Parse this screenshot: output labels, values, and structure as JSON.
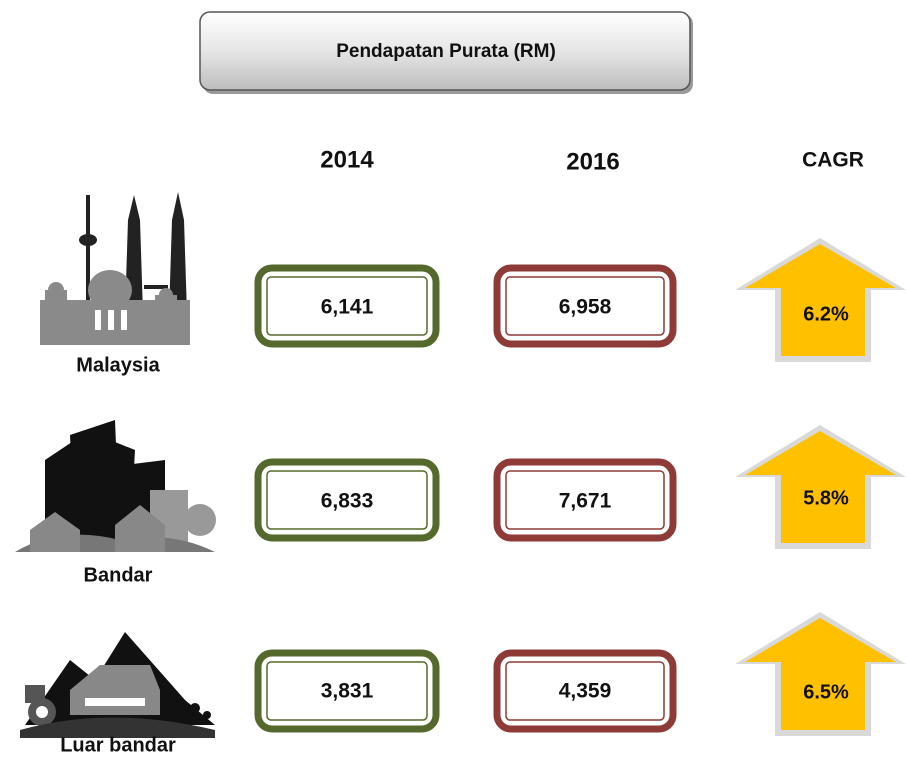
{
  "title": "Pendapatan Purata (RM)",
  "columns": [
    "2014",
    "2016",
    "CAGR"
  ],
  "rows": [
    {
      "label": "Malaysia",
      "values": [
        "6,141",
        "6,958"
      ],
      "cagr": "6.2%"
    },
    {
      "label": "Bandar",
      "values": [
        "6,833",
        "7,671"
      ],
      "cagr": "5.8%"
    },
    {
      "label": "Luar bandar",
      "values": [
        "3,831",
        "4,359"
      ],
      "cagr": "6.5%"
    }
  ]
}
